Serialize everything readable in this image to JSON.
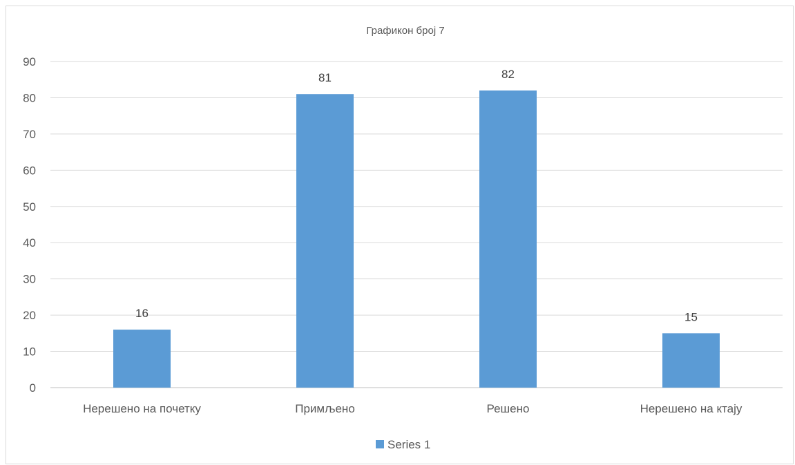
{
  "chart_data": {
    "type": "bar",
    "title": "Графикон број 7",
    "categories": [
      "Нерешено на почетку",
      "Примљено",
      "Решено",
      "Нерешено на ктају"
    ],
    "series": [
      {
        "name": "Series 1",
        "values": [
          16,
          81,
          82,
          15
        ],
        "color": "#5b9bd5"
      }
    ],
    "ylim": [
      0,
      90
    ],
    "yticks": [
      0,
      10,
      20,
      30,
      40,
      50,
      60,
      70,
      80,
      90
    ],
    "xlabel": "",
    "ylabel": "",
    "grid": true,
    "legend": "bottom",
    "data_labels": true
  }
}
